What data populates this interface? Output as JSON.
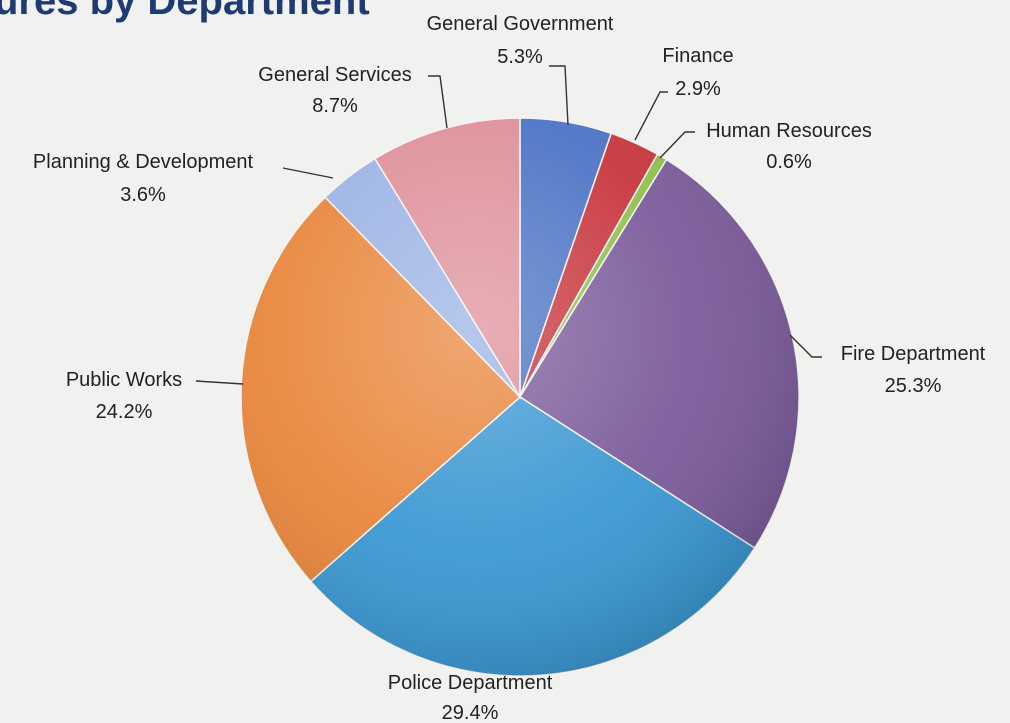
{
  "chart_data": {
    "type": "pie",
    "title": "ures by Department",
    "value_suffix": "%",
    "slices": [
      {
        "label": "General Government",
        "value": 5.3,
        "color": "#4a72c4"
      },
      {
        "label": "Finance",
        "value": 2.9,
        "color": "#c8343c"
      },
      {
        "label": "Human Resources",
        "value": 0.6,
        "color": "#8fc04a"
      },
      {
        "label": "Fire Department",
        "value": 25.3,
        "color": "#7a5a9a"
      },
      {
        "label": "Police Department",
        "value": 29.4,
        "color": "#3a97d2"
      },
      {
        "label": "Public Works",
        "value": 24.2,
        "color": "#e8853a"
      },
      {
        "label": "Planning & Development",
        "value": 3.6,
        "color": "#9bb2e4"
      },
      {
        "label": "General Services",
        "value": 8.7,
        "color": "#de8f98"
      }
    ]
  }
}
